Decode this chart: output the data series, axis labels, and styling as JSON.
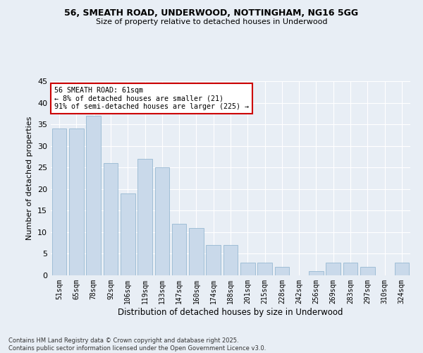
{
  "title1": "56, SMEATH ROAD, UNDERWOOD, NOTTINGHAM, NG16 5GG",
  "title2": "Size of property relative to detached houses in Underwood",
  "xlabel": "Distribution of detached houses by size in Underwood",
  "ylabel": "Number of detached properties",
  "categories": [
    "51sqm",
    "65sqm",
    "78sqm",
    "92sqm",
    "106sqm",
    "119sqm",
    "133sqm",
    "147sqm",
    "160sqm",
    "174sqm",
    "188sqm",
    "201sqm",
    "215sqm",
    "228sqm",
    "242sqm",
    "256sqm",
    "269sqm",
    "283sqm",
    "297sqm",
    "310sqm",
    "324sqm"
  ],
  "values": [
    34,
    34,
    37,
    26,
    19,
    27,
    25,
    12,
    11,
    7,
    7,
    3,
    3,
    2,
    0,
    1,
    3,
    3,
    2,
    0,
    3
  ],
  "bar_color": "#c9d9ea",
  "bar_edge_color": "#8ab0cc",
  "bg_color": "#e8eef5",
  "grid_color": "#ffffff",
  "annotation_text": "56 SMEATH ROAD: 61sqm\n← 8% of detached houses are smaller (21)\n91% of semi-detached houses are larger (225) →",
  "annotation_box_color": "#ffffff",
  "annotation_box_edge": "#cc0000",
  "footnote1": "Contains HM Land Registry data © Crown copyright and database right 2025.",
  "footnote2": "Contains public sector information licensed under the Open Government Licence v3.0.",
  "ylim": [
    0,
    45
  ],
  "yticks": [
    0,
    5,
    10,
    15,
    20,
    25,
    30,
    35,
    40,
    45
  ]
}
